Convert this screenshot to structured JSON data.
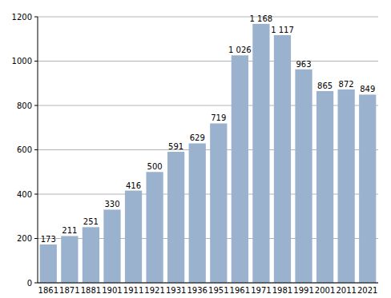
{
  "chart_data": {
    "type": "bar",
    "categories": [
      "1861",
      "1871",
      "1881",
      "1901",
      "1911",
      "1921",
      "1931",
      "1936",
      "1951",
      "1961",
      "1971",
      "1981",
      "1991",
      "2001",
      "2011",
      "2021"
    ],
    "values": [
      173,
      211,
      251,
      330,
      416,
      500,
      591,
      629,
      719,
      1026,
      1168,
      1117,
      963,
      865,
      872,
      849
    ],
    "value_labels": [
      "173",
      "211",
      "251",
      "330",
      "416",
      "500",
      "591",
      "629",
      "719",
      "1 026",
      "1 168",
      "1 117",
      "963",
      "865",
      "872",
      "849"
    ],
    "color": "#9bb2cf",
    "ylim": [
      0,
      1200
    ],
    "yticks": [
      0,
      200,
      400,
      600,
      800,
      1000,
      1200
    ],
    "grid": true,
    "data_labels": true
  }
}
